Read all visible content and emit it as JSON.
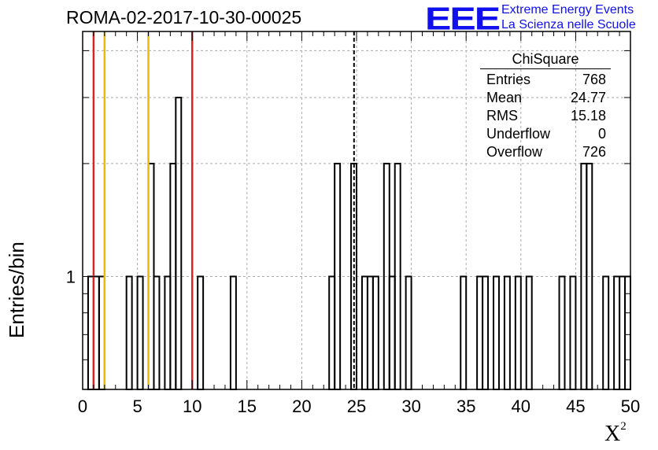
{
  "chart_data": {
    "type": "histogram",
    "title": "ROMA-02-2017-10-30-00025",
    "xlabel": "X",
    "xlabel_sup": "2",
    "ylabel": "Entries/bin",
    "xlim": [
      0,
      50
    ],
    "ylim": [
      0.5,
      4.5
    ],
    "yscale": "log",
    "grid": true,
    "bin_width": 0.5,
    "x_ticks": [
      "0",
      "5",
      "10",
      "15",
      "20",
      "25",
      "30",
      "35",
      "40",
      "45",
      "50"
    ],
    "y_tick_labels": [
      "1"
    ],
    "bins": [
      {
        "x": 0.0,
        "y": 0.5
      },
      {
        "x": 0.5,
        "y": 1
      },
      {
        "x": 1.0,
        "y": 1
      },
      {
        "x": 1.5,
        "y": 1
      },
      {
        "x": 2.0,
        "y": 0.5
      },
      {
        "x": 2.5,
        "y": 0.5
      },
      {
        "x": 3.0,
        "y": 0.5
      },
      {
        "x": 3.5,
        "y": 0.5
      },
      {
        "x": 4.0,
        "y": 1
      },
      {
        "x": 4.5,
        "y": 0.5
      },
      {
        "x": 5.0,
        "y": 1
      },
      {
        "x": 5.5,
        "y": 0.5
      },
      {
        "x": 6.0,
        "y": 2
      },
      {
        "x": 6.5,
        "y": 1
      },
      {
        "x": 7.0,
        "y": 0.5
      },
      {
        "x": 7.5,
        "y": 1
      },
      {
        "x": 8.0,
        "y": 2
      },
      {
        "x": 8.5,
        "y": 3
      },
      {
        "x": 9.0,
        "y": 0.5
      },
      {
        "x": 9.5,
        "y": 0.5
      },
      {
        "x": 10.0,
        "y": 0.5
      },
      {
        "x": 10.5,
        "y": 1
      },
      {
        "x": 11.0,
        "y": 0.5
      },
      {
        "x": 13.5,
        "y": 1
      },
      {
        "x": 14.0,
        "y": 0.5
      },
      {
        "x": 22.5,
        "y": 1
      },
      {
        "x": 23.0,
        "y": 2
      },
      {
        "x": 23.5,
        "y": 0.5
      },
      {
        "x": 24.0,
        "y": 0.5
      },
      {
        "x": 24.5,
        "y": 2
      },
      {
        "x": 25.0,
        "y": 0.5
      },
      {
        "x": 25.5,
        "y": 1
      },
      {
        "x": 26.0,
        "y": 1
      },
      {
        "x": 26.5,
        "y": 1
      },
      {
        "x": 27.0,
        "y": 0.5
      },
      {
        "x": 27.5,
        "y": 2
      },
      {
        "x": 28.0,
        "y": 1
      },
      {
        "x": 28.5,
        "y": 2
      },
      {
        "x": 29.0,
        "y": 0.5
      },
      {
        "x": 29.5,
        "y": 1
      },
      {
        "x": 30.0,
        "y": 0.5
      },
      {
        "x": 34.5,
        "y": 1
      },
      {
        "x": 35.0,
        "y": 0.5
      },
      {
        "x": 36.0,
        "y": 1
      },
      {
        "x": 36.5,
        "y": 1
      },
      {
        "x": 37.0,
        "y": 0.5
      },
      {
        "x": 37.5,
        "y": 1
      },
      {
        "x": 38.0,
        "y": 0.5
      },
      {
        "x": 38.5,
        "y": 1
      },
      {
        "x": 39.0,
        "y": 0.5
      },
      {
        "x": 39.5,
        "y": 1
      },
      {
        "x": 40.0,
        "y": 0.5
      },
      {
        "x": 40.5,
        "y": 1
      },
      {
        "x": 41.0,
        "y": 0.5
      },
      {
        "x": 43.5,
        "y": 1
      },
      {
        "x": 44.0,
        "y": 0.5
      },
      {
        "x": 44.5,
        "y": 1
      },
      {
        "x": 45.0,
        "y": 0.5
      },
      {
        "x": 45.5,
        "y": 2
      },
      {
        "x": 46.0,
        "y": 2
      },
      {
        "x": 46.5,
        "y": 0.5
      },
      {
        "x": 47.0,
        "y": 0.5
      },
      {
        "x": 47.5,
        "y": 1
      },
      {
        "x": 48.0,
        "y": 0.5
      },
      {
        "x": 48.5,
        "y": 1
      },
      {
        "x": 49.0,
        "y": 1
      },
      {
        "x": 49.5,
        "y": 1
      }
    ],
    "vertical_lines": [
      {
        "x": 1.0,
        "color": "#dd2222",
        "style": "solid"
      },
      {
        "x": 2.0,
        "color": "#f0b800",
        "style": "solid"
      },
      {
        "x": 6.0,
        "color": "#f0b800",
        "style": "solid"
      },
      {
        "x": 10.0,
        "color": "#dd2222",
        "style": "solid"
      },
      {
        "x": 24.77,
        "color": "#000000",
        "style": "dashed"
      }
    ],
    "stats": {
      "header": "ChiSquare",
      "rows": [
        {
          "label": "Entries",
          "value": "768"
        },
        {
          "label": "Mean",
          "value": "24.77"
        },
        {
          "label": "RMS",
          "value": "15.18"
        },
        {
          "label": "Underflow",
          "value": "0"
        },
        {
          "label": "Overflow",
          "value": "726"
        }
      ]
    }
  },
  "logo": {
    "mark": "EEE",
    "line1": "Extreme Energy Events",
    "line2": "La Scienza nelle Scuole",
    "color": "#1010ee"
  }
}
